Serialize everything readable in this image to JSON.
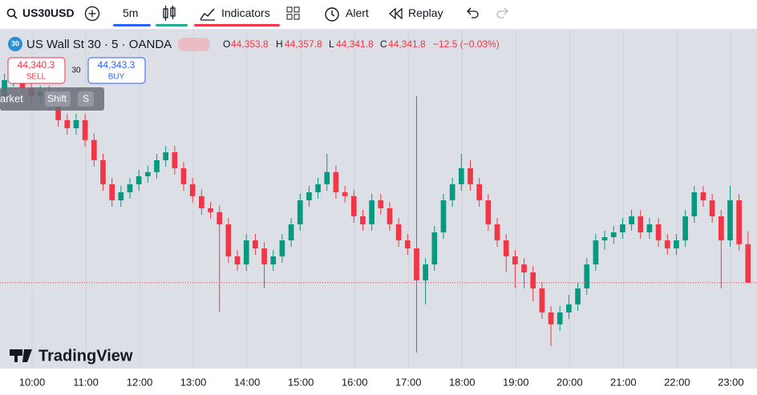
{
  "toolbar": {
    "symbol": "US30USD",
    "interval": "5m",
    "indicators": "Indicators",
    "alert": "Alert",
    "replay": "Replay"
  },
  "legend": {
    "badge": "30",
    "symbol": "US Wall St 30 · 5 · OANDA",
    "o_label": "O",
    "o": "44,353.8",
    "h_label": "H",
    "h": "44,357.8",
    "l_label": "L",
    "l": "44,341.8",
    "c_label": "C",
    "c": "44,341.8",
    "change": "−12.5 (−0.03%)"
  },
  "trade": {
    "sell_price": "44,340.3",
    "sell": "SELL",
    "spread": "30",
    "buy_price": "44,343.3",
    "buy": "BUY"
  },
  "overlay": {
    "market": "arket",
    "shift": "Shift",
    "key": "S"
  },
  "logo": "TradingView",
  "chart_data": {
    "type": "candlestick",
    "up_color": "#089981",
    "down_color": "#f23645",
    "xlim": [
      -0.5,
      84
    ],
    "ylim": [
      44320,
      44420
    ],
    "grid": true,
    "xticks": [
      {
        "value": 3.08,
        "label": "10:00"
      },
      {
        "value": 9.08,
        "label": "11:00"
      },
      {
        "value": 15.08,
        "label": "12:00"
      },
      {
        "value": 21.08,
        "label": "13:00"
      },
      {
        "value": 27.08,
        "label": "14:00"
      },
      {
        "value": 33.08,
        "label": "15:00"
      },
      {
        "value": 39.08,
        "label": "16:00"
      },
      {
        "value": 45.08,
        "label": "17:00"
      },
      {
        "value": 51.08,
        "label": "18:00"
      },
      {
        "value": 57.08,
        "label": "19:00"
      },
      {
        "value": 63.08,
        "label": "20:00"
      },
      {
        "value": 69.08,
        "label": "21:00"
      },
      {
        "value": 75.08,
        "label": "22:00"
      },
      {
        "value": 81.08,
        "label": "23:00"
      }
    ],
    "candles": [
      [
        44400,
        44407,
        44398,
        44405
      ],
      [
        44405,
        44408.3,
        44403,
        44406.3
      ],
      [
        44406.3,
        44408.3,
        44400.5,
        44402.5
      ],
      [
        44402.5,
        44404.5,
        44398,
        44400
      ],
      [
        44400,
        44403.3,
        44398,
        44401.3
      ],
      [
        44401.3,
        44403.3,
        44395.5,
        44397.5
      ],
      [
        44397.5,
        44399.5,
        44390.5,
        44392.5
      ],
      [
        44392.5,
        44394.5,
        44388,
        44390
      ],
      [
        44390,
        44394.5,
        44388,
        44392.5
      ],
      [
        44392.5,
        44394.5,
        44384.3,
        44386.3
      ],
      [
        44386.3,
        44388.3,
        44378,
        44380
      ],
      [
        44380,
        44382,
        44370.5,
        44372.5
      ],
      [
        44372.5,
        44374.5,
        44365.5,
        44367.5
      ],
      [
        44367.5,
        44372,
        44365.5,
        44370
      ],
      [
        44370,
        44374.5,
        44368,
        44372.5
      ],
      [
        44372.5,
        44377,
        44370.5,
        44375
      ],
      [
        44375,
        44378.3,
        44373,
        44376.3
      ],
      [
        44376.3,
        44382,
        44374.3,
        44380
      ],
      [
        44380,
        44384.5,
        44378,
        44382.5
      ],
      [
        44382.5,
        44384.5,
        44375.5,
        44377.5
      ],
      [
        44377.5,
        44379.5,
        44370.5,
        44372.5
      ],
      [
        44372.5,
        44374.5,
        44366.8,
        44368.8
      ],
      [
        44368.8,
        44370.8,
        44363,
        44365
      ],
      [
        44365,
        44367,
        44361.8,
        44363.8
      ],
      [
        44363.8,
        44365.8,
        44332.5,
        44360
      ],
      [
        44360,
        44362,
        44348,
        44350
      ],
      [
        44350,
        44352,
        44345.5,
        44347.5
      ],
      [
        44347.5,
        44357,
        44345.5,
        44355
      ],
      [
        44355,
        44357,
        44350.5,
        44352.5
      ],
      [
        44352.5,
        44354.5,
        44340,
        44347.5
      ],
      [
        44347.5,
        44352,
        44345.5,
        44350
      ],
      [
        44350,
        44357,
        44348,
        44355
      ],
      [
        44355,
        44362,
        44353,
        44360
      ],
      [
        44360,
        44369.5,
        44358,
        44367.5
      ],
      [
        44367.5,
        44372,
        44365.5,
        44370
      ],
      [
        44370,
        44374.5,
        44368,
        44372.5
      ],
      [
        44372.5,
        44382,
        44370.5,
        44376.3
      ],
      [
        44376.3,
        44378.3,
        44368,
        44370
      ],
      [
        44370,
        44372,
        44366.8,
        44368.8
      ],
      [
        44368.8,
        44370.8,
        44360.5,
        44362.5
      ],
      [
        44362.5,
        44364.5,
        44358,
        44360
      ],
      [
        44360,
        44369.5,
        44358,
        44367.5
      ],
      [
        44367.5,
        44369.5,
        44363,
        44365
      ],
      [
        44365,
        44367,
        44358,
        44360
      ],
      [
        44360,
        44362,
        44353,
        44355
      ],
      [
        44355,
        44357,
        44350.5,
        44352.5
      ],
      [
        44352.5,
        44400,
        44320,
        44342.5
      ],
      [
        44342.5,
        44349.5,
        44335,
        44347.5
      ],
      [
        44347.5,
        44359.5,
        44345.5,
        44357.5
      ],
      [
        44357.5,
        44369.5,
        44355.5,
        44367.5
      ],
      [
        44367.5,
        44374.5,
        44365.5,
        44372.5
      ],
      [
        44372.5,
        44382,
        44370.5,
        44377.5
      ],
      [
        44377.5,
        44380,
        44370.5,
        44372.5
      ],
      [
        44372.5,
        44374.5,
        44365.5,
        44367.5
      ],
      [
        44367.5,
        44369.5,
        44358,
        44360
      ],
      [
        44360,
        44362,
        44353,
        44355
      ],
      [
        44355,
        44357,
        44345,
        44350
      ],
      [
        44350,
        44352,
        44340,
        44347.5
      ],
      [
        44347.5,
        44349.5,
        44340,
        44345
      ],
      [
        44345,
        44347,
        44336,
        44340
      ],
      [
        44340,
        44342,
        44330.5,
        44332.5
      ],
      [
        44332.5,
        44334.5,
        44322,
        44328.8
      ],
      [
        44328.8,
        44334.5,
        44326.8,
        44332.5
      ],
      [
        44332.5,
        44338,
        44330.5,
        44335
      ],
      [
        44335,
        44342,
        44333,
        44340
      ],
      [
        44340,
        44349.5,
        44338,
        44347.5
      ],
      [
        44347.5,
        44357,
        44345.5,
        44355
      ],
      [
        44355,
        44358,
        44352,
        44356
      ],
      [
        44356,
        44359.5,
        44354,
        44357.5
      ],
      [
        44357.5,
        44362,
        44355.5,
        44360
      ],
      [
        44360,
        44364.5,
        44358,
        44362.5
      ],
      [
        44362.5,
        44364.5,
        44355.5,
        44357.5
      ],
      [
        44357.5,
        44362,
        44355.5,
        44360
      ],
      [
        44360,
        44362,
        44353,
        44355
      ],
      [
        44355,
        44357,
        44350.5,
        44352.5
      ],
      [
        44352.5,
        44357,
        44350.5,
        44355
      ],
      [
        44355,
        44364.5,
        44353,
        44362.5
      ],
      [
        44362.5,
        44372,
        44360.5,
        44370
      ],
      [
        44370,
        44372,
        44365.5,
        44367.5
      ],
      [
        44367.5,
        44369.5,
        44360.5,
        44362.5
      ],
      [
        44362.5,
        44364.5,
        44340,
        44355
      ],
      [
        44355,
        44372,
        44353,
        44367.5
      ],
      [
        44367.5,
        44369.5,
        44351.8,
        44353.8
      ],
      [
        44353.8,
        44357.8,
        44341.8,
        44341.8
      ]
    ]
  }
}
